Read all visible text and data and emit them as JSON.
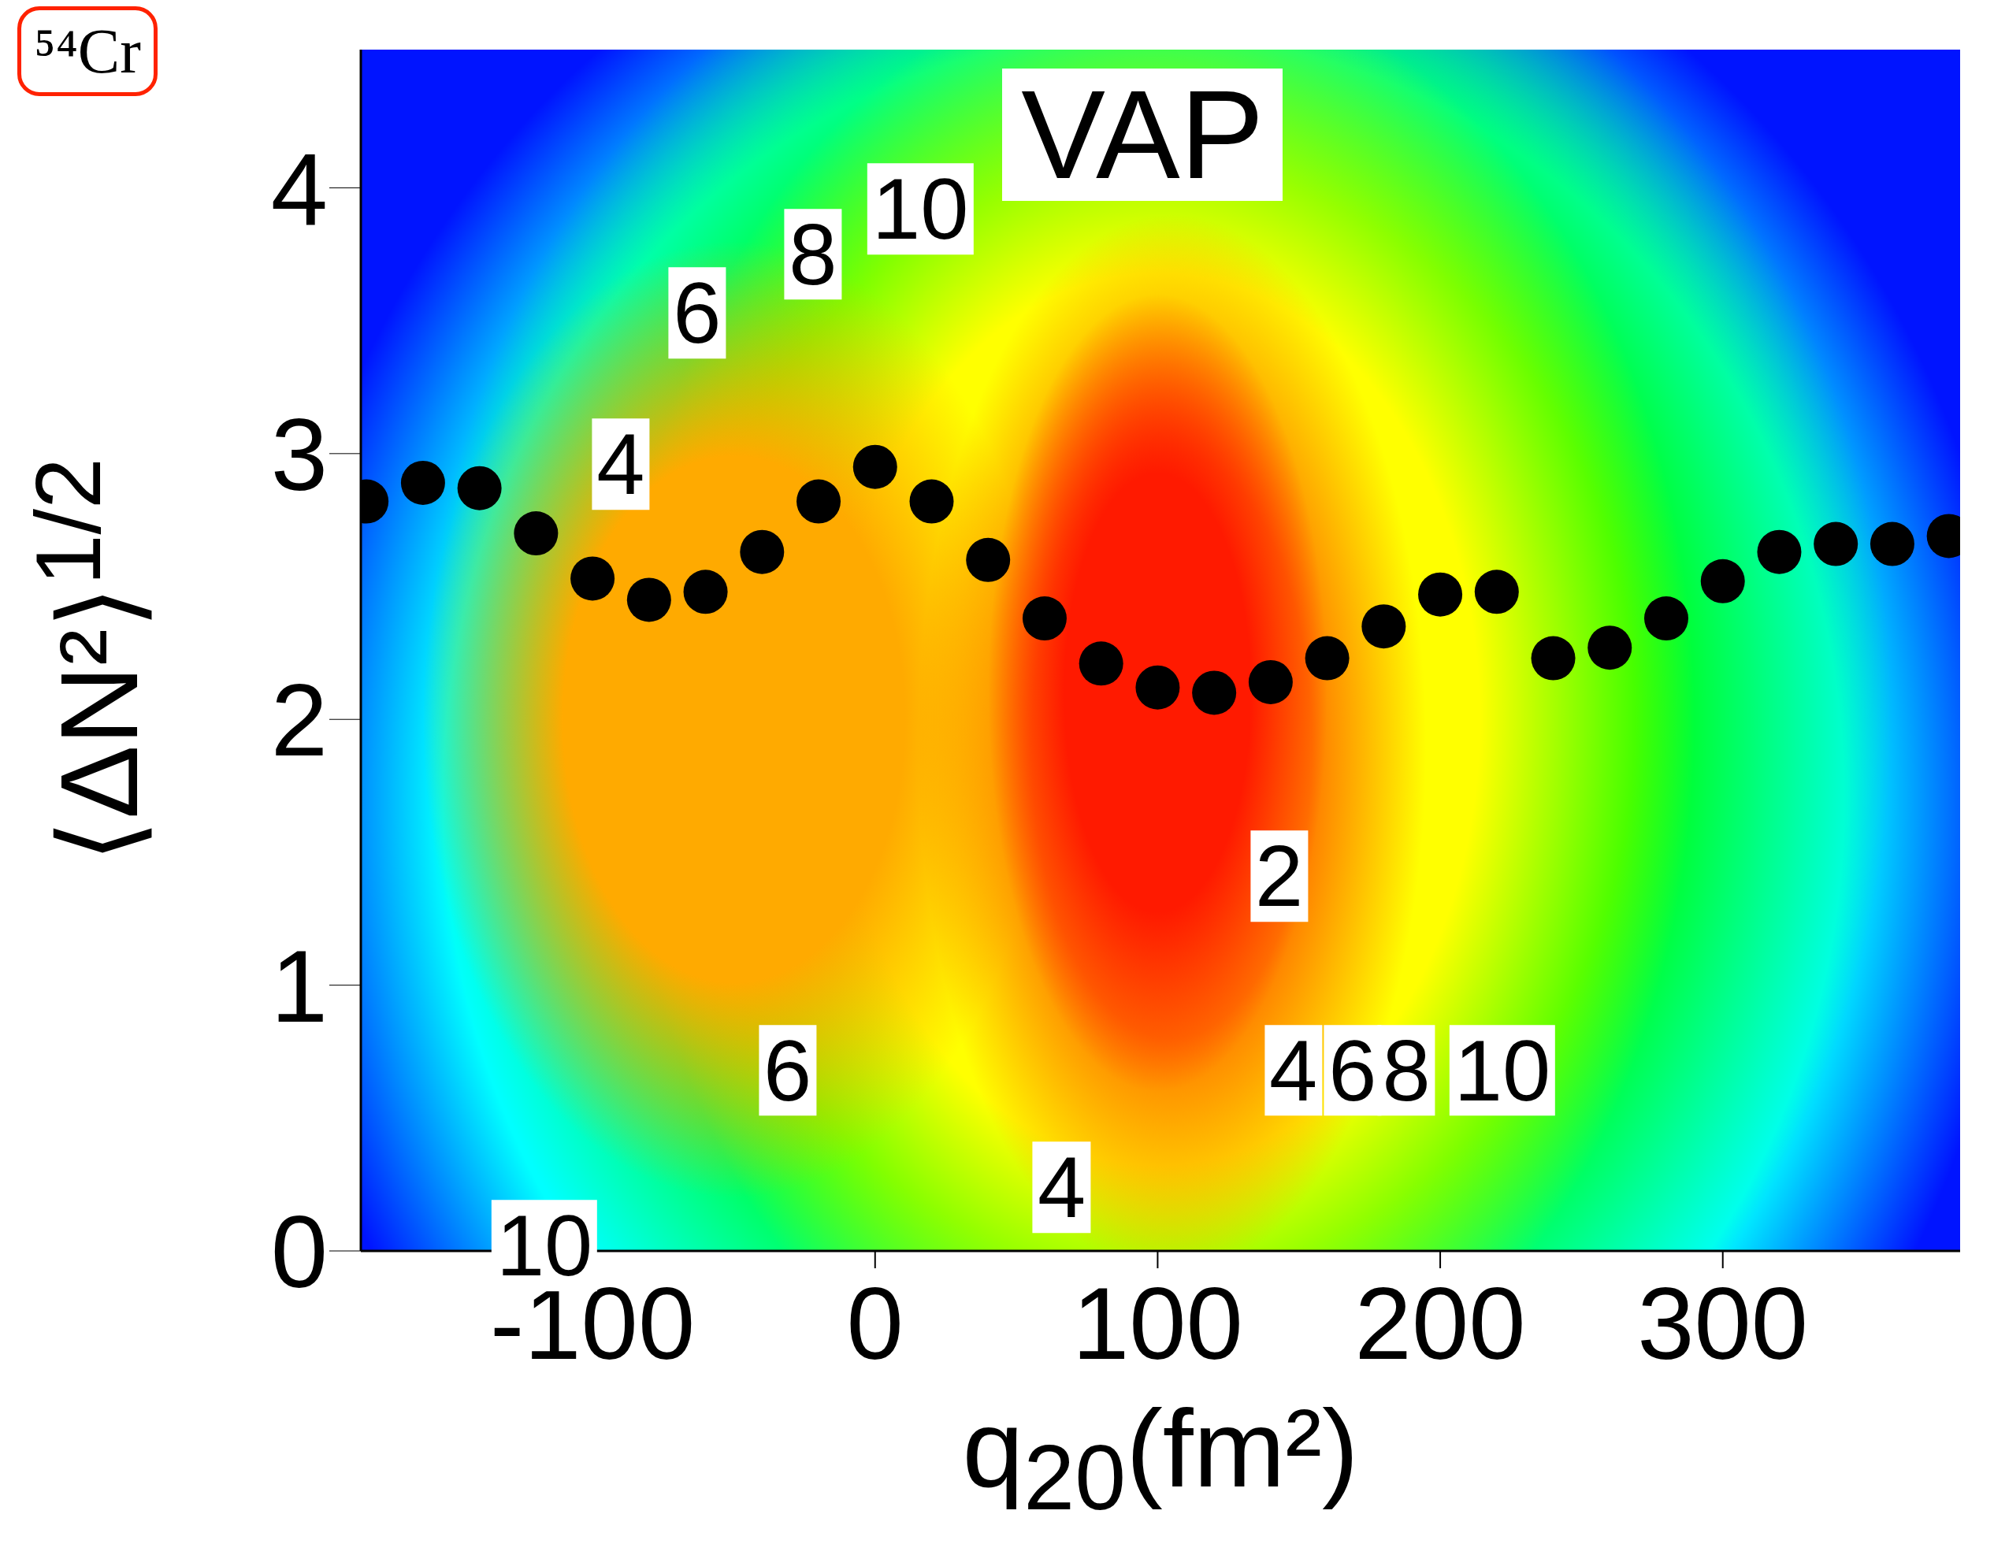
{
  "chart_data": {
    "type": "scatter",
    "xlabel": "q$_{20}$(fm²)",
    "ylabel": "⟨ΔN²⟩$^{1/2}$",
    "color": "#000000",
    "marker": "circle",
    "x": [
      -180,
      -160,
      -140,
      -120,
      -100,
      -80,
      -60,
      -40,
      -20,
      0,
      20,
      40,
      60,
      80,
      100,
      120,
      140,
      160,
      180,
      200,
      220,
      240,
      260,
      280,
      300,
      320,
      340,
      360,
      380
    ],
    "values": [
      2.82,
      2.89,
      2.87,
      2.7,
      2.53,
      2.45,
      2.48,
      2.63,
      2.82,
      2.95,
      2.82,
      2.6,
      2.38,
      2.21,
      2.12,
      2.1,
      2.14,
      2.23,
      2.35,
      2.47,
      2.48,
      2.23,
      2.27,
      2.38,
      2.52,
      2.63,
      2.66,
      2.66,
      2.69
    ],
    "xlim": [
      -182,
      384
    ],
    "ylim": [
      0,
      4.52
    ],
    "xticks": [
      -100,
      0,
      100,
      200,
      300
    ],
    "yticks": [
      0,
      1,
      2,
      3,
      4
    ],
    "annotations": [
      "⁵⁴Cr",
      "VAP",
      "10",
      "8",
      "6",
      "4",
      "2",
      "4",
      "6",
      "8",
      "10",
      "6",
      "4",
      "10"
    ]
  }
}
